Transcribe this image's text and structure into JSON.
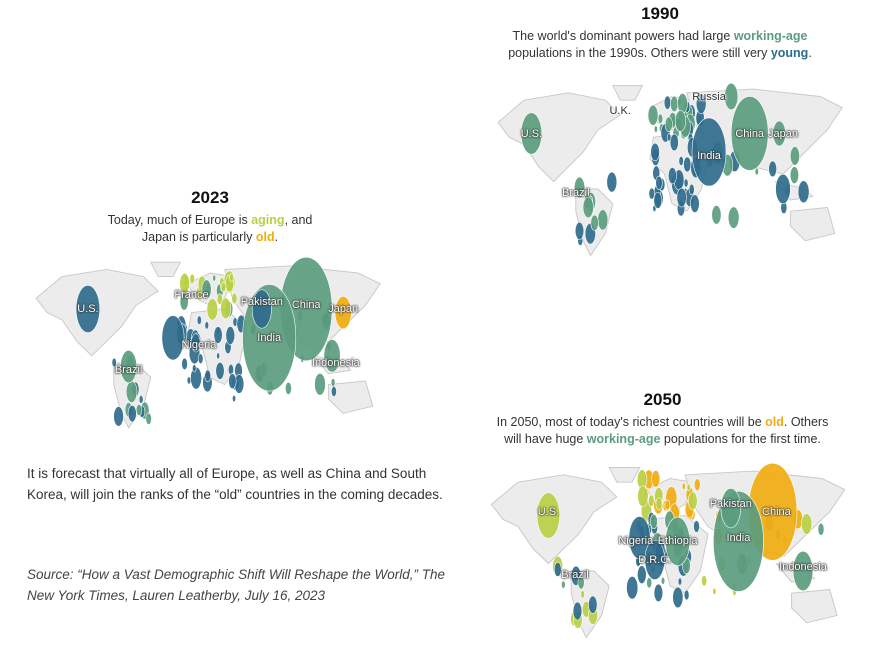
{
  "colors": {
    "young": "#2f6b8c",
    "working": "#5b9c7e",
    "aging": "#b9cf45",
    "old": "#f0ad10",
    "land": "#e4e4e4"
  },
  "panel_1990": {
    "year": "1990",
    "line1_pre": "The world's dominant powers had large ",
    "line1_hl": "working-age",
    "line2_pre": "populations in the 1990s. Others were still very ",
    "line2_hl": "young",
    "line2_post": ".",
    "labels": [
      "Russia",
      "U.K.",
      "U.S.",
      "China",
      "Japan",
      "India",
      "Brazil"
    ]
  },
  "panel_2023": {
    "year": "2023",
    "line1_pre": "Today, much of Europe is ",
    "line1_hl": "aging",
    "line1_post": ", and",
    "line2_pre": "Japan is particularly ",
    "line2_hl": "old",
    "line2_post": ".",
    "labels": [
      "U.S.",
      "France",
      "Pakistan",
      "China",
      "Japan",
      "India",
      "Nigeria",
      "Indonesia",
      "Brazil"
    ]
  },
  "panel_2050": {
    "year": "2050",
    "line1_pre": "In 2050, most of today's richest countries will be ",
    "line1_hl": "old",
    "line1_post": ". Others",
    "line2_pre": "will have huge ",
    "line2_hl": "working-age",
    "line2_post": " populations for the first time.",
    "labels": [
      "U.S.",
      "Pakistan",
      "China",
      "Nigeria",
      "Ethiopia",
      "D.R.C.",
      "India",
      "Indonesia",
      "Brazil"
    ]
  },
  "note": "It is forecast that virtually all of Europe, as well as China and South Korea, will join the ranks of the “old” countries in the coming decades.",
  "source": "Source: “How a Vast Demographic Shift Will Reshape the World,” The New York Times, Lauren Leatherby, July 16, 2023"
}
